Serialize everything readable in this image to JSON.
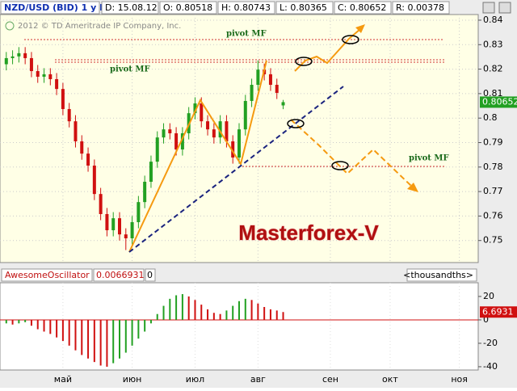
{
  "header": {
    "symbol": "NZD/USD (BID) 1 y D",
    "date": "D: 15.08.12",
    "open": "O: 0.80518",
    "high": "H: 0.80743",
    "low": "L: 0.80365",
    "close": "C: 0.80652",
    "range": "R: 0.00378"
  },
  "copyright": "2012 © TD Ameritrade IP Company, Inc.",
  "annotations": {
    "pivot_1": "pivot MF",
    "pivot_2": "pivot MF",
    "pivot_3": "pivot MF",
    "brand": "Masterforex-V"
  },
  "chart_data": [
    {
      "type": "candlestick",
      "x": [
        1,
        3,
        5,
        7,
        9,
        11,
        13,
        15,
        17,
        19,
        21,
        23,
        25,
        27,
        29,
        31,
        33,
        35,
        37,
        39,
        41,
        43,
        45,
        47,
        49,
        51,
        53,
        55,
        57,
        59,
        61,
        63,
        65,
        67,
        69,
        71,
        73,
        75,
        77,
        79,
        81,
        83,
        85,
        87,
        89
      ],
      "open": [
        0.822,
        0.8245,
        0.8252,
        0.8265,
        0.8245,
        0.8192,
        0.8169,
        0.8179,
        0.8159,
        0.8119,
        0.8037,
        0.7987,
        0.7905,
        0.7855,
        0.7806,
        0.769,
        0.7608,
        0.7542,
        0.7591,
        0.7525,
        0.7509,
        0.7575,
        0.7657,
        0.774,
        0.7822,
        0.7921,
        0.7954,
        0.7938,
        0.7872,
        0.7938,
        0.802,
        0.806,
        0.7987,
        0.7954,
        0.7921,
        0.7987,
        0.7905,
        0.7839,
        0.7954,
        0.807,
        0.8136,
        0.8198,
        0.8179,
        0.8136,
        0.80518
      ],
      "high": [
        0.827,
        0.8277,
        0.829,
        0.829,
        0.827,
        0.8217,
        0.8204,
        0.8204,
        0.8184,
        0.8144,
        0.8062,
        0.8012,
        0.793,
        0.788,
        0.7831,
        0.7715,
        0.7633,
        0.7616,
        0.7616,
        0.755,
        0.76,
        0.7682,
        0.7765,
        0.7847,
        0.7946,
        0.7979,
        0.7979,
        0.7963,
        0.7963,
        0.8045,
        0.8085,
        0.8085,
        0.8012,
        0.7979,
        0.8012,
        0.8012,
        0.793,
        0.7979,
        0.8095,
        0.8161,
        0.8235,
        0.8223,
        0.8204,
        0.8161,
        0.80743
      ],
      "low": [
        0.8195,
        0.822,
        0.8227,
        0.822,
        0.8167,
        0.8144,
        0.8144,
        0.8134,
        0.8094,
        0.8012,
        0.7962,
        0.788,
        0.783,
        0.7781,
        0.7665,
        0.7583,
        0.7517,
        0.7517,
        0.75,
        0.7461,
        0.7484,
        0.755,
        0.7632,
        0.7715,
        0.7797,
        0.7896,
        0.7913,
        0.7847,
        0.7847,
        0.7913,
        0.7995,
        0.7962,
        0.7929,
        0.7896,
        0.7896,
        0.788,
        0.7814,
        0.7814,
        0.7929,
        0.8045,
        0.8111,
        0.8154,
        0.8111,
        0.8078,
        0.80365
      ],
      "close": [
        0.8245,
        0.8252,
        0.8265,
        0.8245,
        0.8192,
        0.8169,
        0.8179,
        0.8159,
        0.8119,
        0.8037,
        0.7987,
        0.7905,
        0.7855,
        0.7806,
        0.769,
        0.7608,
        0.7542,
        0.7591,
        0.7525,
        0.7509,
        0.7575,
        0.7657,
        0.774,
        0.7822,
        0.7921,
        0.7954,
        0.7938,
        0.7872,
        0.7938,
        0.802,
        0.806,
        0.7987,
        0.7954,
        0.7921,
        0.7987,
        0.7905,
        0.7839,
        0.7954,
        0.807,
        0.8136,
        0.8198,
        0.8179,
        0.8136,
        0.8103,
        0.80652
      ],
      "up_color": "#22a022",
      "down_color": "#d01010",
      "xlim": [
        -1,
        151
      ],
      "ylim": [
        0.741,
        0.8423
      ],
      "yticks": [
        0.84,
        0.83,
        0.82,
        0.81,
        0.8,
        0.79,
        0.78,
        0.77,
        0.76,
        0.75
      ],
      "grid": true
    },
    {
      "type": "bar",
      "name": "AwesomeOscillator",
      "value_text": "0.0066931",
      "shift_text": "0",
      "units": "<thousandths>",
      "values": [
        -3,
        -4,
        -3,
        -2,
        -5,
        -8,
        -10,
        -12,
        -15,
        -18,
        -22,
        -26,
        -30,
        -33,
        -36,
        -39,
        -40,
        -37,
        -33,
        -28,
        -22,
        -16,
        -10,
        -3,
        5,
        12,
        18,
        21,
        22,
        20,
        17,
        13,
        9,
        6,
        5,
        8,
        12,
        16,
        18,
        17,
        14,
        11,
        9,
        8,
        6.6931
      ],
      "up_color": "#22a022",
      "down_color": "#d01010",
      "xlim": [
        -1,
        151
      ],
      "ylim": [
        -42.8,
        31.7
      ],
      "yticks": [
        20,
        0,
        -20,
        -40
      ],
      "xticks": [
        {
          "value": 19,
          "label": "май"
        },
        {
          "value": 41,
          "label": "июн"
        },
        {
          "value": 61,
          "label": "июл"
        },
        {
          "value": 81,
          "label": "авг"
        },
        {
          "value": 104,
          "label": "сен"
        },
        {
          "value": 123,
          "label": "окт"
        },
        {
          "value": 145,
          "label": "ноя"
        }
      ]
    }
  ]
}
